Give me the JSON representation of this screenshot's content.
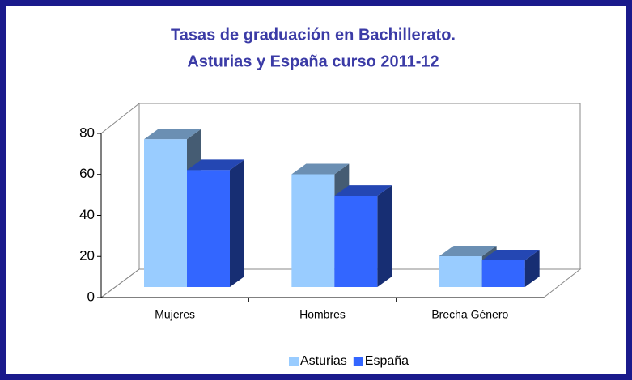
{
  "chart_data": {
    "type": "bar3d",
    "title": [
      "Tasas de graduación en Bachillerato.",
      "Asturias y España curso 2011-12"
    ],
    "categories": [
      "Mujeres",
      "Hombres",
      "Brecha Género"
    ],
    "series": [
      {
        "name": "Asturias",
        "color": "#99ccff",
        "values": [
          72,
          55,
          15
        ]
      },
      {
        "name": "España",
        "color": "#3366ff",
        "values": [
          57,
          44.5,
          13
        ]
      }
    ],
    "ylim": [
      0,
      80
    ],
    "yticks": [
      0,
      20,
      40,
      60,
      80
    ],
    "grid": false,
    "legend": "bottom"
  }
}
